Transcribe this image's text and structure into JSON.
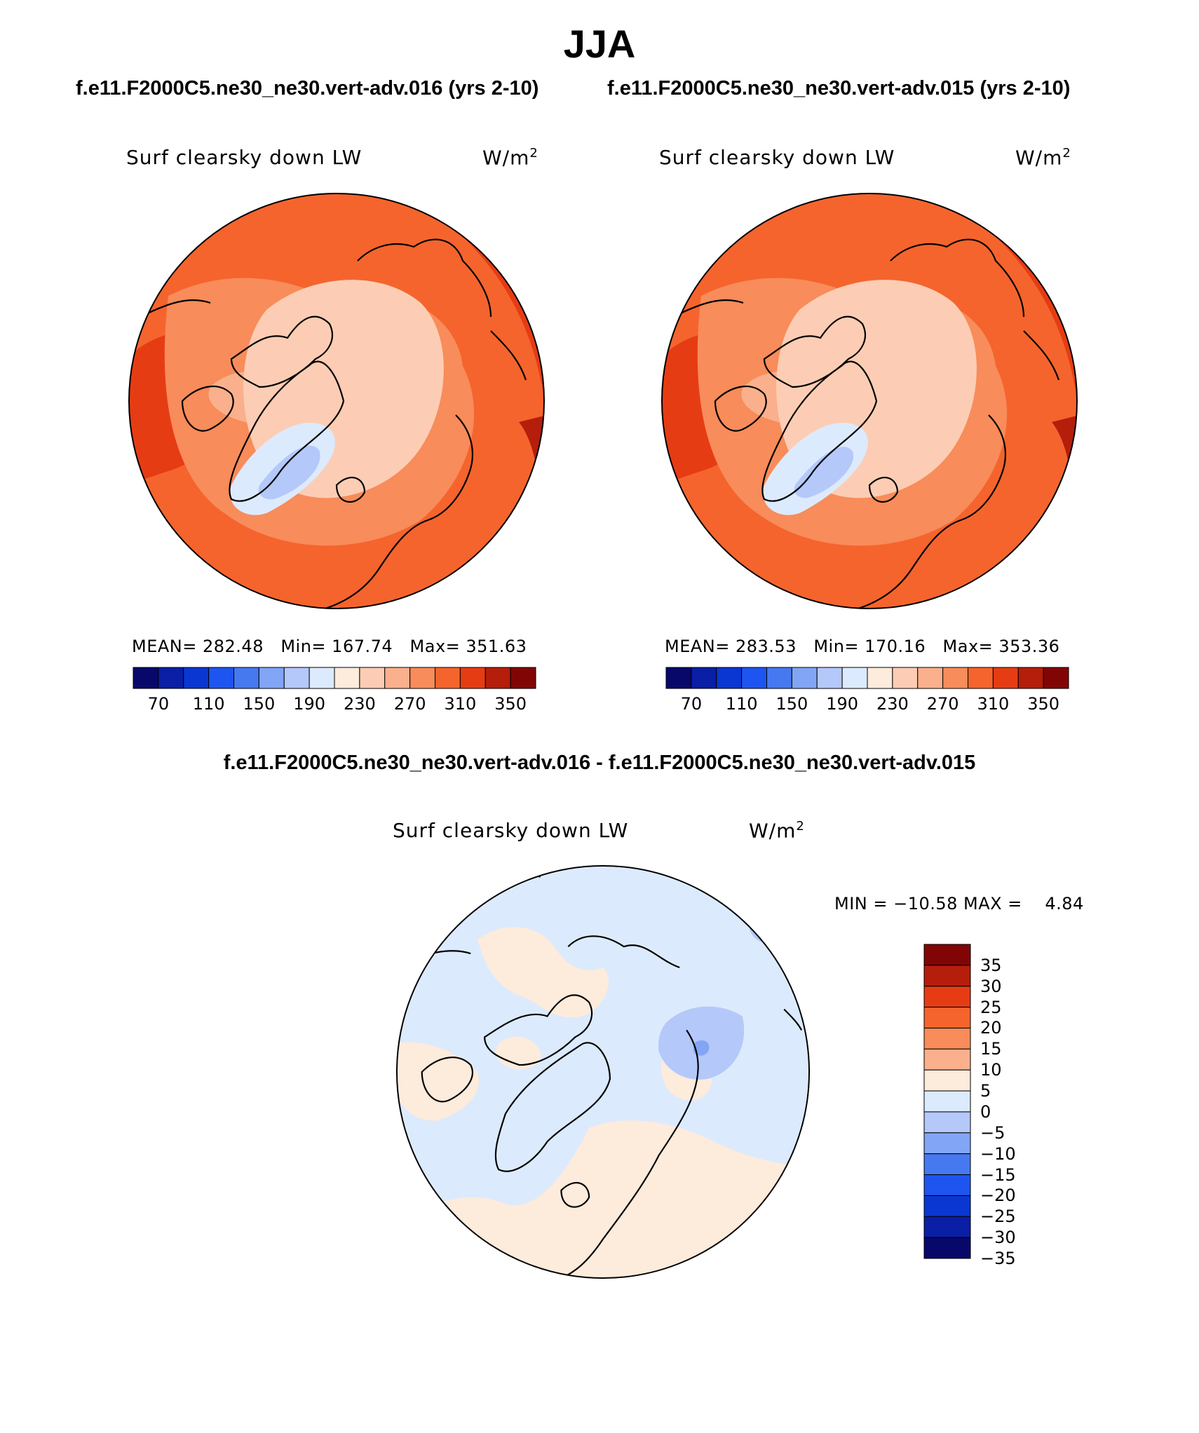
{
  "title": "JJA",
  "panels": [
    {
      "case_title": "f.e11.F2000C5.ne30_ne30.vert-adv.016 (yrs 2-10)",
      "variable": "Surf clearsky down LW",
      "units": "W/m",
      "units_sup": "2",
      "stats": "MEAN= 282.48   Min= 167.74   Max= 351.63"
    },
    {
      "case_title": "f.e11.F2000C5.ne30_ne30.vert-adv.015 (yrs 2-10)",
      "variable": "Surf clearsky down LW",
      "units": "W/m",
      "units_sup": "2",
      "stats": "MEAN= 283.53   Min= 170.16   Max= 353.36"
    }
  ],
  "difference": {
    "title": "f.e11.F2000C5.ne30_ne30.vert-adv.016 - f.e11.F2000C5.ne30_ne30.vert-adv.015",
    "variable": "Surf clearsky down LW",
    "units": "W/m",
    "units_sup": "2",
    "stats": "MIN = −10.58 MAX =    4.84"
  },
  "colorbars": {
    "abs": {
      "colors": [
        "#08086b",
        "#0a1ea6",
        "#0a37d2",
        "#1e55f0",
        "#4678f0",
        "#82a5f5",
        "#b4c8fa",
        "#dceafd",
        "#fdebdc",
        "#fccdb4",
        "#fab08c",
        "#f88c5a",
        "#f5642d",
        "#e63c14",
        "#b41e0a",
        "#820505"
      ],
      "labels": [
        "70",
        "110",
        "150",
        "190",
        "230",
        "270",
        "310",
        "350"
      ]
    },
    "diff": {
      "colors": [
        "#820505",
        "#b41e0a",
        "#e63c14",
        "#f5642d",
        "#f88c5a",
        "#fab08c",
        "#fdebdc",
        "#dceafd",
        "#b4c8fa",
        "#82a5f5",
        "#4678f0",
        "#1e55f0",
        "#0a37d2",
        "#0a1ea6",
        "#08086b"
      ],
      "labels": [
        "35",
        "30",
        "25",
        "20",
        "15",
        "10",
        "5",
        "0",
        "−5",
        "−10",
        "−15",
        "−20",
        "−25",
        "−30",
        "−35"
      ]
    }
  }
}
